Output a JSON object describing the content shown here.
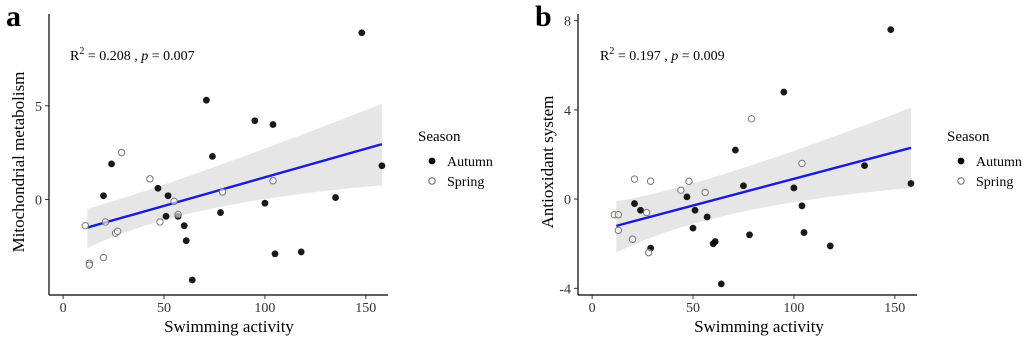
{
  "chart_data": [
    {
      "type": "scatter",
      "panel_label": "a",
      "xlabel": "Swimming activity",
      "ylabel": "Mitochondrial metabolism",
      "xlim": [
        -7,
        161
      ],
      "ylim": [
        -5.1,
        9.9
      ],
      "xticks": [
        0,
        50,
        100,
        150
      ],
      "yticks": [
        0,
        5
      ],
      "stat": {
        "r2_prefix": "R",
        "r2_sup": "2",
        "r2_value": " = 0.208 , ",
        "p_symbol": "p",
        "p_value": " = 0.007"
      },
      "regression": {
        "x": [
          12,
          158
        ],
        "y": [
          -1.5,
          2.95
        ],
        "ci_lower": [
          -2.6,
          0.75
        ],
        "ci_upper": [
          -0.5,
          5.1
        ],
        "ci_mid_x": 58,
        "ci_mid_lower": [
          -0.35
        ],
        "ci_mid_upper": [
          1.1
        ]
      },
      "legend_title": "Season",
      "legend_position": "right",
      "series": [
        {
          "name": "Autumn",
          "marker": "filled",
          "x": [
            20,
            24,
            47,
            51,
            52,
            57,
            60,
            61,
            64,
            71,
            74,
            78,
            95,
            100,
            104,
            105,
            118,
            135,
            148,
            158
          ],
          "y": [
            0.2,
            1.9,
            0.6,
            -0.9,
            0.2,
            -0.9,
            -1.4,
            -2.2,
            -4.3,
            5.3,
            2.3,
            -0.7,
            4.2,
            -0.2,
            4.0,
            -2.9,
            -2.8,
            0.1,
            8.9,
            1.8
          ]
        },
        {
          "name": "Spring",
          "marker": "hollow",
          "x": [
            11,
            13,
            13,
            20,
            21,
            26,
            27,
            29,
            43,
            48,
            55,
            57,
            79,
            104
          ],
          "y": [
            -1.4,
            -3.4,
            -3.5,
            -3.1,
            -1.2,
            -1.8,
            -1.7,
            2.5,
            1.1,
            -1.2,
            -0.1,
            -0.8,
            0.4,
            1.0
          ]
        }
      ]
    },
    {
      "type": "scatter",
      "panel_label": "b",
      "xlabel": "Swimming activity",
      "ylabel": "Antioxidant system",
      "xlim": [
        -7,
        161
      ],
      "ylim": [
        -4.3,
        8.3
      ],
      "xticks": [
        0,
        50,
        100,
        150
      ],
      "yticks": [
        -4,
        0,
        4,
        8
      ],
      "stat": {
        "r2_prefix": "R",
        "r2_sup": "2",
        "r2_value": " = 0.197 , ",
        "p_symbol": "p",
        "p_value": " = 0.009"
      },
      "regression": {
        "x": [
          12,
          158
        ],
        "y": [
          -1.2,
          2.3
        ],
        "ci_lower": [
          -2.4,
          0.5
        ],
        "ci_upper": [
          -0.1,
          4.1
        ],
        "ci_mid_x": 58,
        "ci_mid_lower": [
          -0.5
        ],
        "ci_mid_upper": [
          0.8
        ]
      },
      "legend_title": "Season",
      "legend_position": "right",
      "series": [
        {
          "name": "Autumn",
          "marker": "filled",
          "x": [
            21,
            24,
            29,
            47,
            50,
            51,
            57,
            60,
            61,
            64,
            71,
            75,
            78,
            95,
            100,
            104,
            105,
            118,
            135,
            148,
            158
          ],
          "y": [
            -0.2,
            -0.5,
            -2.2,
            0.1,
            -1.3,
            -0.5,
            -0.8,
            -2.0,
            -1.9,
            -3.8,
            2.2,
            0.6,
            -1.6,
            4.8,
            0.5,
            -0.3,
            -1.5,
            -2.1,
            1.5,
            7.6,
            0.7
          ]
        },
        {
          "name": "Spring",
          "marker": "hollow",
          "x": [
            11,
            13,
            13,
            20,
            21,
            27,
            28,
            29,
            44,
            48,
            56,
            79,
            104
          ],
          "y": [
            -0.7,
            -1.4,
            -0.7,
            -1.8,
            0.9,
            -0.6,
            -2.4,
            0.8,
            0.4,
            0.8,
            0.3,
            3.6,
            1.6
          ]
        }
      ]
    }
  ]
}
